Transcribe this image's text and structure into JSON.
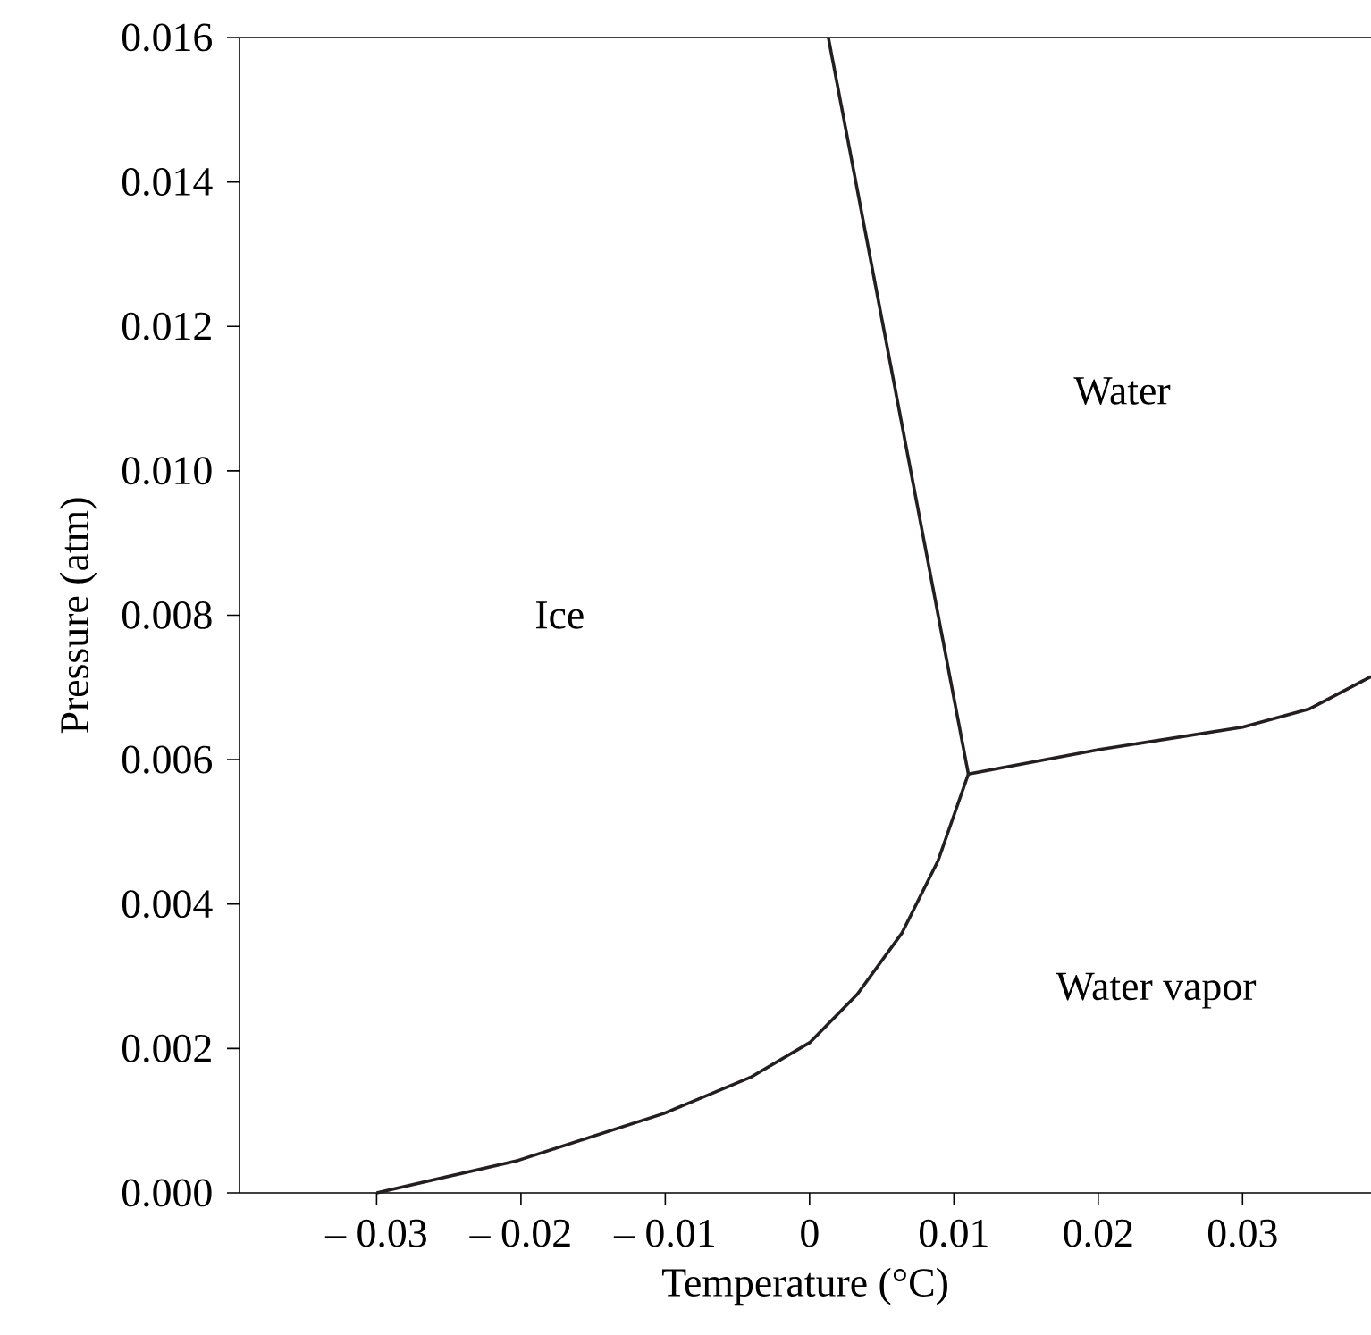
{
  "chart_data": {
    "type": "line",
    "xlabel": "Temperature (°C)",
    "ylabel": "Pressure (atm)",
    "xlim": [
      -0.0395,
      0.0389
    ],
    "ylim": [
      0,
      0.016
    ],
    "xticks": [
      {
        "value": -0.03,
        "label": "– 0.03"
      },
      {
        "value": -0.02,
        "label": "– 0.02"
      },
      {
        "value": -0.01,
        "label": "– 0.01"
      },
      0,
      0.01,
      0.02,
      0.03
    ],
    "yticks": [
      {
        "value": 0,
        "label": "0.000"
      },
      {
        "value": 0.002,
        "label": "0.002"
      },
      {
        "value": 0.004,
        "label": "0.004"
      },
      {
        "value": 0.006,
        "label": "0.006"
      },
      {
        "value": 0.008,
        "label": "0.008"
      },
      {
        "value": 0.01,
        "label": "0.010"
      },
      {
        "value": 0.012,
        "label": "0.012"
      },
      {
        "value": 0.014,
        "label": "0.014"
      },
      {
        "value": 0.016,
        "label": "0.016"
      }
    ],
    "series": [
      {
        "color": "#231f20",
        "x": [
          -0.03,
          -0.0202,
          -0.0101,
          -0.0041,
          0,
          0.0033,
          0.0064,
          0.0089,
          0.011
        ],
        "values": [
          0,
          0.00045,
          0.0011,
          0.0016,
          0.00208,
          0.00275,
          0.0036,
          0.0046,
          0.0058
        ]
      },
      {
        "color": "#231f20",
        "x": [
          0.0013,
          0.011
        ],
        "values": [
          0.016,
          0.0058
        ]
      },
      {
        "color": "#231f20",
        "x": [
          0.011,
          0.0201,
          0.03,
          0.0346,
          0.0389
        ],
        "values": [
          0.0058,
          0.00614,
          0.00645,
          0.0067,
          0.00715
        ]
      }
    ],
    "annotations": [
      "Ice",
      "Water",
      "Water vapor"
    ],
    "line_style": "solid",
    "marker": "none",
    "grid": false
  }
}
